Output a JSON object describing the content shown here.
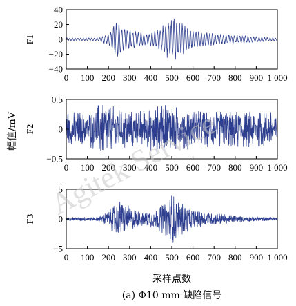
{
  "chart_data": [
    {
      "type": "line",
      "panel_label": "F1",
      "xlim": [
        0,
        1000
      ],
      "ylim": [
        -40,
        40
      ],
      "yticks": [
        -40,
        -20,
        0,
        20,
        40
      ],
      "xticks": [
        0,
        100,
        200,
        300,
        400,
        500,
        600,
        700,
        800,
        900,
        1000
      ],
      "xtick_labels": [
        "0",
        "100",
        "200",
        "300",
        "400",
        "500",
        "600",
        "700",
        "800",
        "900",
        "1 000"
      ],
      "grid": false,
      "series": [
        {
          "color": "#2e3f8f",
          "envelope_peaks": [
            {
              "x": 0,
              "a": 2
            },
            {
              "x": 150,
              "a": 2
            },
            {
              "x": 200,
              "a": 8
            },
            {
              "x": 240,
              "a": 26
            },
            {
              "x": 280,
              "a": 16
            },
            {
              "x": 330,
              "a": 12
            },
            {
              "x": 380,
              "a": 8
            },
            {
              "x": 440,
              "a": 14
            },
            {
              "x": 480,
              "a": 26
            },
            {
              "x": 510,
              "a": 32
            },
            {
              "x": 550,
              "a": 22
            },
            {
              "x": 600,
              "a": 12
            },
            {
              "x": 680,
              "a": 9
            },
            {
              "x": 760,
              "a": 7
            },
            {
              "x": 850,
              "a": 5
            },
            {
              "x": 920,
              "a": 3
            },
            {
              "x": 1000,
              "a": 2
            }
          ],
          "oscillation_period": 13
        }
      ]
    },
    {
      "type": "line",
      "panel_label": "F2",
      "xlim": [
        0,
        1000
      ],
      "ylim": [
        -0.5,
        0.5
      ],
      "yticks": [
        -0.5,
        0,
        0.5
      ],
      "xticks": [
        0,
        100,
        200,
        300,
        400,
        500,
        600,
        700,
        800,
        900,
        1000
      ],
      "xtick_labels": [
        "0",
        "100",
        "200",
        "300",
        "400",
        "500",
        "600",
        "700",
        "800",
        "900",
        "1 000"
      ],
      "grid": false,
      "series": [
        {
          "color": "#2e3f8f",
          "envelope_peaks": [
            {
              "x": 0,
              "a": 0.3
            },
            {
              "x": 100,
              "a": 0.3
            },
            {
              "x": 170,
              "a": 0.46
            },
            {
              "x": 250,
              "a": 0.35
            },
            {
              "x": 350,
              "a": 0.32
            },
            {
              "x": 420,
              "a": 0.4
            },
            {
              "x": 500,
              "a": 0.42
            },
            {
              "x": 600,
              "a": 0.32
            },
            {
              "x": 700,
              "a": 0.3
            },
            {
              "x": 800,
              "a": 0.32
            },
            {
              "x": 900,
              "a": 0.3
            },
            {
              "x": 1000,
              "a": 0.3
            }
          ],
          "oscillation_period": 4
        }
      ]
    },
    {
      "type": "line",
      "panel_label": "F3",
      "xlim": [
        0,
        1000
      ],
      "ylim": [
        -5,
        5
      ],
      "yticks": [
        -5,
        0,
        5
      ],
      "xticks": [
        0,
        100,
        200,
        300,
        400,
        500,
        600,
        700,
        800,
        900,
        1000
      ],
      "xtick_labels": [
        "0",
        "100",
        "200",
        "300",
        "400",
        "500",
        "600",
        "700",
        "800",
        "900",
        "1 000"
      ],
      "xlabel": "采样点数",
      "grid": false,
      "series": [
        {
          "color": "#2e3f8f",
          "envelope_peaks": [
            {
              "x": 0,
              "a": 0.3
            },
            {
              "x": 150,
              "a": 0.4
            },
            {
              "x": 200,
              "a": 1.5
            },
            {
              "x": 250,
              "a": 3.2
            },
            {
              "x": 300,
              "a": 2.2
            },
            {
              "x": 350,
              "a": 1.2
            },
            {
              "x": 420,
              "a": 1.6
            },
            {
              "x": 470,
              "a": 3.0
            },
            {
              "x": 500,
              "a": 4.4
            },
            {
              "x": 540,
              "a": 3.0
            },
            {
              "x": 600,
              "a": 1.6
            },
            {
              "x": 650,
              "a": 1.3
            },
            {
              "x": 720,
              "a": 1.0
            },
            {
              "x": 800,
              "a": 0.6
            },
            {
              "x": 900,
              "a": 0.4
            },
            {
              "x": 1000,
              "a": 0.3
            }
          ],
          "oscillation_period": 5
        }
      ]
    }
  ],
  "figure": {
    "ylabel": "幅值/mV",
    "caption": "(a) Φ10 mm 缺陷信号",
    "watermark": "Agitek Service"
  }
}
